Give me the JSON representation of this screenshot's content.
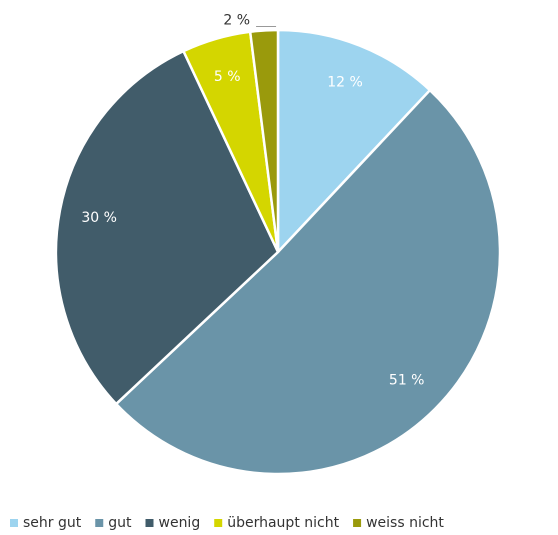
{
  "chart_data": {
    "type": "pie",
    "categories": [
      "sehr gut",
      "gut",
      "wenig",
      "überhaupt nicht",
      "weiss nicht"
    ],
    "values": [
      12,
      51,
      30,
      5,
      2
    ],
    "value_labels": [
      "12 %",
      "51 %",
      "30 %",
      "5 %",
      "2 %"
    ],
    "colors": [
      "#9dd4ef",
      "#6a94a8",
      "#415c6a",
      "#d4d600",
      "#9a9a0c"
    ],
    "legend": "bottom"
  }
}
